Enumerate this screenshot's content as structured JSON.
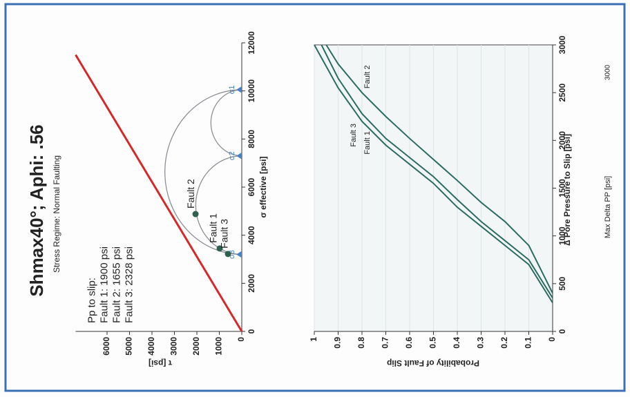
{
  "chart_data": [
    {
      "type": "scatter",
      "title": "Shmax40°; Aphi: .56",
      "subtitle": "Stress Regime: Normal Faulting",
      "x_label": "σ effective [psi]",
      "y_label": "τ [psi]",
      "xlim": [
        0,
        12000
      ],
      "xticks": [
        0,
        2000,
        4000,
        6000,
        8000,
        10000,
        12000
      ],
      "ylim": [
        0,
        7400
      ],
      "yticks": [
        0,
        1000,
        2000,
        3000,
        4000,
        5000,
        6000
      ],
      "annotation": {
        "heading": "Pp to slip:",
        "lines": [
          "Fault 1: 1900 psi",
          "Fault 2: 1655 psi",
          "Fault 3: 2328 psi"
        ]
      },
      "friction_line": {
        "color": "#d62828",
        "x": [
          0,
          11500
        ],
        "values": [
          0,
          7400
        ]
      },
      "principal_stresses": {
        "color": "#4a80c8",
        "labels": [
          "σ3",
          "σ2",
          "σ1"
        ],
        "x": [
          3200,
          7300,
          10050
        ]
      },
      "series": [
        {
          "name": "Fault 1",
          "color": "#2f5f4f",
          "x": [
            3450
          ],
          "values": [
            985
          ]
        },
        {
          "name": "Fault 2",
          "color": "#2f5f4f",
          "x": [
            4880
          ],
          "values": [
            2060
          ]
        },
        {
          "name": "Fault 3",
          "color": "#2f5f4f",
          "x": [
            3220
          ],
          "values": [
            615
          ]
        }
      ]
    },
    {
      "type": "line",
      "x_label": "Δ Pore Pressure to Slip [psi]",
      "y_label": "Probability of Fault Slip",
      "xlim": [
        0,
        3000
      ],
      "xticks": [
        0,
        500,
        1000,
        1500,
        2000,
        2500,
        3000
      ],
      "ylim": [
        0,
        1
      ],
      "yticks": [
        0,
        0.1,
        0.2,
        0.3,
        0.4,
        0.5,
        0.6,
        0.7,
        0.8,
        0.9,
        1
      ],
      "grid": true,
      "series": [
        {
          "name": "Fault 1",
          "color": "#2a6b62",
          "x": [
            300,
            700,
            900,
            1100,
            1300,
            1550,
            1750,
            1950,
            2200,
            2550,
            3000
          ],
          "values": [
            0,
            0.1,
            0.2,
            0.3,
            0.4,
            0.5,
            0.6,
            0.7,
            0.8,
            0.9,
            1
          ]
        },
        {
          "name": "Fault 3",
          "color": "#2a6b62",
          "x": [
            350,
            750,
            950,
            1150,
            1380,
            1620,
            1820,
            2020,
            2280,
            2650,
            3000
          ],
          "values": [
            0,
            0.1,
            0.2,
            0.3,
            0.4,
            0.5,
            0.6,
            0.7,
            0.8,
            0.9,
            0.97
          ]
        },
        {
          "name": "Fault 2",
          "color": "#2a6b62",
          "x": [
            400,
            900,
            1150,
            1350,
            1580,
            1800,
            2020,
            2250,
            2500,
            2800,
            3000
          ],
          "values": [
            0,
            0.1,
            0.2,
            0.3,
            0.4,
            0.5,
            0.6,
            0.7,
            0.8,
            0.9,
            0.95
          ]
        }
      ]
    }
  ],
  "footer": {
    "label": "Max Delta PP [psi]",
    "value": 3000
  }
}
